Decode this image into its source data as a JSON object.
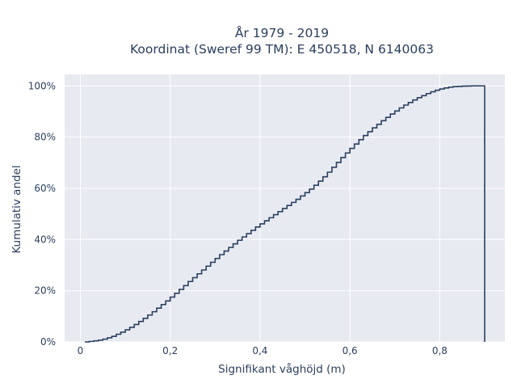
{
  "chart_data": {
    "type": "line",
    "line_shape": "step",
    "title_lines": [
      "År 1979 - 2019",
      "Koordinat (Sweref 99 TM): E 450518, N 6140063"
    ],
    "xlabel": "Signifikant våghöjd (m)",
    "ylabel": "Kumulativ andel",
    "xlim": [
      -0.035,
      0.945
    ],
    "ylim": [
      0,
      1.045
    ],
    "x_ticks": [
      0,
      0.2,
      0.4,
      0.6,
      0.8
    ],
    "x_tick_labels": [
      "0",
      "0,2",
      "0,4",
      "0,6",
      "0,8"
    ],
    "y_ticks": [
      0,
      0.2,
      0.4,
      0.6,
      0.8,
      1.0
    ],
    "y_tick_labels": [
      "0%",
      "20%",
      "40%",
      "60%",
      "80%",
      "100%"
    ],
    "grid": true,
    "colors": {
      "plot_bg": "#e8eaf2",
      "grid": "#ffffff",
      "line": "#2a3f5f",
      "text": "#2a3f5f"
    },
    "series": [
      {
        "x": [
          0.01,
          0.02,
          0.03,
          0.04,
          0.05,
          0.06,
          0.07,
          0.08,
          0.09,
          0.1,
          0.11,
          0.12,
          0.13,
          0.14,
          0.15,
          0.16,
          0.17,
          0.18,
          0.19,
          0.2,
          0.21,
          0.22,
          0.23,
          0.24,
          0.25,
          0.26,
          0.27,
          0.28,
          0.29,
          0.3,
          0.31,
          0.32,
          0.33,
          0.34,
          0.35,
          0.36,
          0.37,
          0.38,
          0.39,
          0.4,
          0.41,
          0.42,
          0.43,
          0.44,
          0.45,
          0.46,
          0.47,
          0.48,
          0.49,
          0.5,
          0.51,
          0.52,
          0.53,
          0.54,
          0.55,
          0.56,
          0.57,
          0.58,
          0.59,
          0.6,
          0.61,
          0.62,
          0.63,
          0.64,
          0.65,
          0.66,
          0.67,
          0.68,
          0.69,
          0.7,
          0.71,
          0.72,
          0.73,
          0.74,
          0.75,
          0.76,
          0.77,
          0.78,
          0.79,
          0.8,
          0.81,
          0.82,
          0.83,
          0.84,
          0.85,
          0.86,
          0.87,
          0.88,
          0.89,
          0.9,
          0.9
        ],
        "y": [
          0.0,
          0.002,
          0.004,
          0.007,
          0.011,
          0.016,
          0.022,
          0.03,
          0.038,
          0.047,
          0.057,
          0.068,
          0.08,
          0.092,
          0.105,
          0.118,
          0.132,
          0.146,
          0.16,
          0.175,
          0.19,
          0.205,
          0.22,
          0.236,
          0.251,
          0.266,
          0.281,
          0.296,
          0.311,
          0.326,
          0.341,
          0.355,
          0.369,
          0.383,
          0.397,
          0.41,
          0.423,
          0.436,
          0.449,
          0.461,
          0.473,
          0.485,
          0.497,
          0.509,
          0.521,
          0.533,
          0.545,
          0.557,
          0.57,
          0.583,
          0.597,
          0.612,
          0.628,
          0.645,
          0.663,
          0.682,
          0.701,
          0.72,
          0.738,
          0.756,
          0.773,
          0.79,
          0.806,
          0.821,
          0.836,
          0.85,
          0.864,
          0.877,
          0.89,
          0.902,
          0.914,
          0.925,
          0.935,
          0.945,
          0.954,
          0.962,
          0.97,
          0.977,
          0.983,
          0.988,
          0.992,
          0.995,
          0.997,
          0.998,
          0.999,
          0.9995,
          1.0,
          1.0,
          1.0,
          1.0,
          0.0
        ]
      }
    ]
  }
}
